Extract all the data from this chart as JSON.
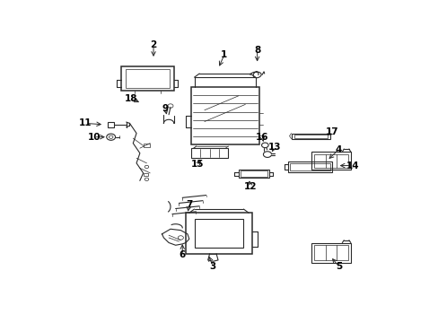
{
  "bg_color": "#ffffff",
  "line_color": "#2a2a2a",
  "text_color": "#000000",
  "fig_width": 4.89,
  "fig_height": 3.6,
  "dpi": 100,
  "label_positions": {
    "1": [
      0.498,
      0.935,
      0.48,
      0.88
    ],
    "2": [
      0.29,
      0.975,
      0.29,
      0.918
    ],
    "3": [
      0.465,
      0.085,
      0.45,
      0.135
    ],
    "4": [
      0.835,
      0.555,
      0.8,
      0.51
    ],
    "5": [
      0.835,
      0.085,
      0.81,
      0.125
    ],
    "6": [
      0.375,
      0.13,
      0.375,
      0.185
    ],
    "7": [
      0.395,
      0.335,
      0.39,
      0.295
    ],
    "8": [
      0.595,
      0.955,
      0.595,
      0.898
    ],
    "9": [
      0.325,
      0.72,
      0.33,
      0.685
    ],
    "10": [
      0.115,
      0.605,
      0.155,
      0.605
    ],
    "11": [
      0.09,
      0.66,
      0.145,
      0.655
    ],
    "12": [
      0.575,
      0.405,
      0.57,
      0.44
    ],
    "13": [
      0.645,
      0.565,
      0.635,
      0.535
    ],
    "14": [
      0.875,
      0.49,
      0.83,
      0.49
    ],
    "15": [
      0.42,
      0.495,
      0.435,
      0.52
    ],
    "16": [
      0.61,
      0.605,
      0.615,
      0.575
    ],
    "17": [
      0.815,
      0.625,
      0.795,
      0.605
    ],
    "18": [
      0.225,
      0.76,
      0.255,
      0.74
    ]
  }
}
